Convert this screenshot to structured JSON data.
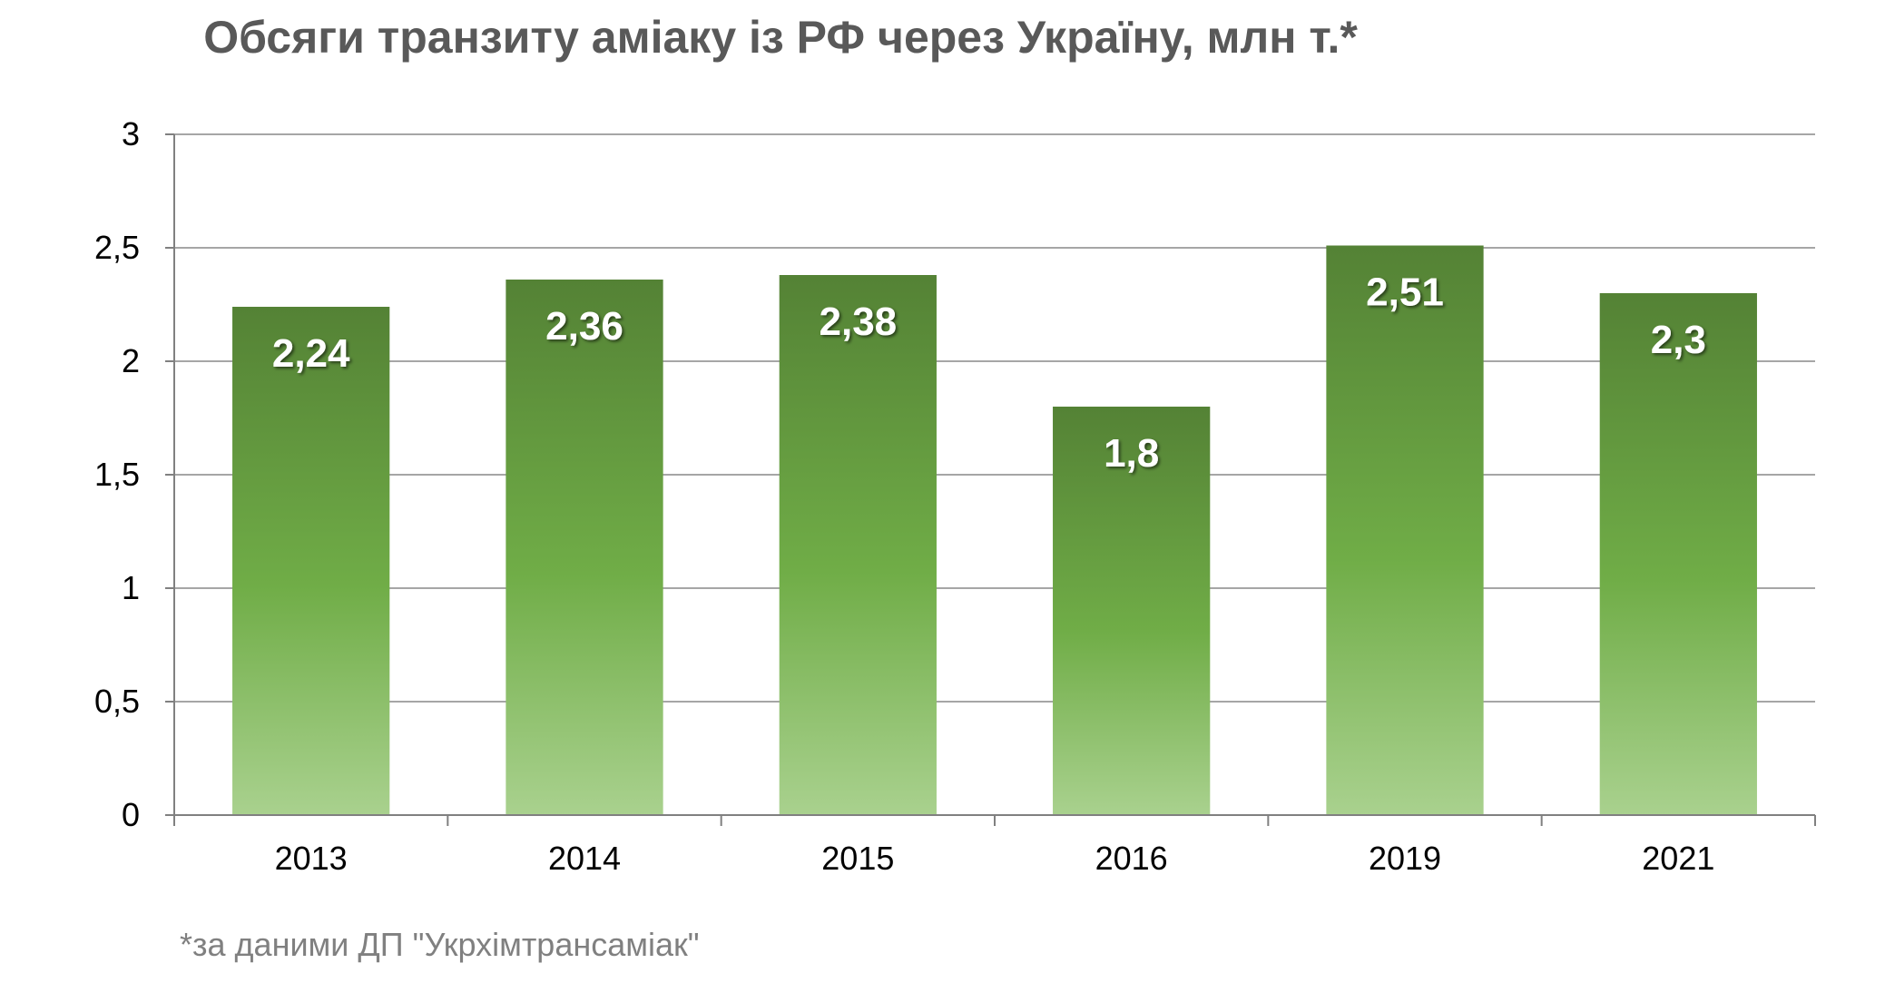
{
  "chart_data": {
    "type": "bar",
    "title": "Обсяги транзиту аміаку із РФ через Україну, млн т.*",
    "categories": [
      "2013",
      "2014",
      "2015",
      "2016",
      "2019",
      "2021"
    ],
    "values": [
      2.24,
      2.36,
      2.38,
      1.8,
      2.51,
      2.3
    ],
    "data_labels": [
      "2,24",
      "2,36",
      "2,38",
      "1,8",
      "2,51",
      "2,3"
    ],
    "xlabel": "",
    "ylabel": "",
    "ylim": [
      0,
      3
    ],
    "yticks": [
      0,
      0.5,
      1,
      1.5,
      2,
      2.5,
      3
    ],
    "ytick_labels": [
      "0",
      "0,5",
      "1",
      "1,5",
      "2",
      "2,5",
      "3"
    ],
    "grid": true,
    "legend": "none",
    "footnote": "*за даними ДП \"Укрхімтрансаміак\"",
    "colors": {
      "bar_top": "#548235",
      "bar_mid": "#70AD47",
      "bar_bottom": "#A9D18E",
      "grid": "#A6A6A6",
      "axis": "#808080",
      "title": "#595959",
      "footnote": "#808080",
      "tick_text": "#000000",
      "data_label": "#FFFFFF"
    }
  }
}
